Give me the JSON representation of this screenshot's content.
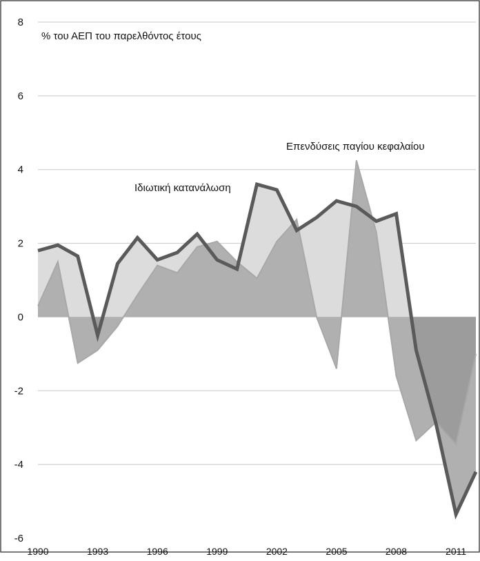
{
  "chart_data": {
    "type": "area",
    "title": "",
    "ylabel": "% του ΑΕΠ του παρελθόντος έτους",
    "xlabel": "",
    "xlim": [
      1990,
      2012
    ],
    "ylim": [
      -6,
      8
    ],
    "grid": true,
    "x": [
      1990,
      1991,
      1992,
      1993,
      1994,
      1995,
      1996,
      1997,
      1998,
      1999,
      2000,
      2001,
      2002,
      2003,
      2004,
      2005,
      2006,
      2007,
      2008,
      2009,
      2010,
      2011,
      2012
    ],
    "series": [
      {
        "name": "Ιδιωτική κατανάλωση",
        "values": [
          1.8,
          1.95,
          1.65,
          -0.5,
          1.45,
          2.15,
          1.55,
          1.75,
          2.25,
          1.55,
          1.3,
          3.6,
          3.45,
          2.35,
          2.7,
          3.15,
          3.0,
          2.6,
          2.8,
          -0.9,
          -2.9,
          -5.35,
          -4.2
        ],
        "color": "#5a5a5a",
        "fill": "#dcdcdc"
      },
      {
        "name": "Επενδύσεις παγίου κεφαλαίου",
        "values": [
          0.3,
          1.5,
          -1.25,
          -0.9,
          -0.25,
          0.6,
          1.4,
          1.2,
          1.9,
          2.05,
          1.5,
          1.05,
          2.05,
          2.65,
          0.0,
          -1.4,
          4.25,
          2.3,
          -1.6,
          -3.35,
          -2.85,
          -3.45,
          -1.0
        ],
        "color": "#7a7a7a",
        "fill": "#b0b0b0"
      }
    ],
    "y_ticks": [
      "8",
      "6",
      "4",
      "2",
      "0",
      "-2",
      "-4",
      "-6"
    ],
    "x_tick_labels": [
      "1990",
      "1993",
      "1996",
      "1999",
      "2002",
      "2005",
      "2008",
      "2011"
    ],
    "annotations": {
      "consumption": "Ιδιωτική κατανάλωση",
      "investment": "Επενδύσεις παγίου κεφαλαίου"
    },
    "colors": {
      "consumption_line": "#5a5a5a",
      "consumption_fill": "#dcdcdc",
      "investment_line": "#a8a8a8",
      "investment_fill": "#b0b0b0",
      "investment_above_fill": "#8c8c8c",
      "grid": "#c8c8c8"
    }
  }
}
